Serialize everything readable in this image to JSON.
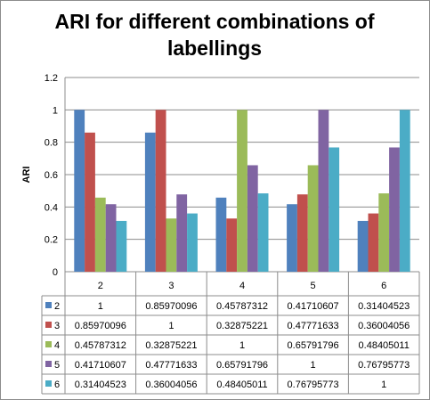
{
  "chart_data": {
    "type": "bar",
    "title": "ARI for different combinations of labellings",
    "title_lines": [
      "ARI for different combinations of",
      "labellings"
    ],
    "ylabel": "ARI",
    "xlabel": "",
    "ylim": [
      0,
      1.2
    ],
    "yticks": [
      "0",
      "0.2",
      "0.4",
      "0.6",
      "0.8",
      "1",
      "1.2"
    ],
    "grid": true,
    "legend": "data-table-left",
    "categories": [
      "2",
      "3",
      "4",
      "5",
      "6"
    ],
    "series": [
      {
        "name": "2",
        "color": "#4F81BD",
        "values": [
          1,
          0.85970096,
          0.45787312,
          0.41710607,
          0.31404523
        ],
        "labels": [
          "1",
          "0.85970096",
          "0.45787312",
          "0.41710607",
          "0.31404523"
        ]
      },
      {
        "name": "3",
        "color": "#C0504D",
        "values": [
          0.85970096,
          1,
          0.32875221,
          0.47771633,
          0.36004056
        ],
        "labels": [
          "0.85970096",
          "1",
          "0.32875221",
          "0.47771633",
          "0.36004056"
        ]
      },
      {
        "name": "4",
        "color": "#9BBB59",
        "values": [
          0.45787312,
          0.32875221,
          1,
          0.65791796,
          0.48405011
        ],
        "labels": [
          "0.45787312",
          "0.32875221",
          "1",
          "0.65791796",
          "0.48405011"
        ]
      },
      {
        "name": "5",
        "color": "#8064A2",
        "values": [
          0.41710607,
          0.47771633,
          0.65791796,
          1,
          0.76795773
        ],
        "labels": [
          "0.41710607",
          "0.47771633",
          "0.65791796",
          "1",
          "0.76795773"
        ]
      },
      {
        "name": "6",
        "color": "#4BACC6",
        "values": [
          0.31404523,
          0.36004056,
          0.48405011,
          0.76795773,
          1
        ],
        "labels": [
          "0.31404523",
          "0.36004056",
          "0.48405011",
          "0.76795773",
          "1"
        ]
      }
    ]
  }
}
